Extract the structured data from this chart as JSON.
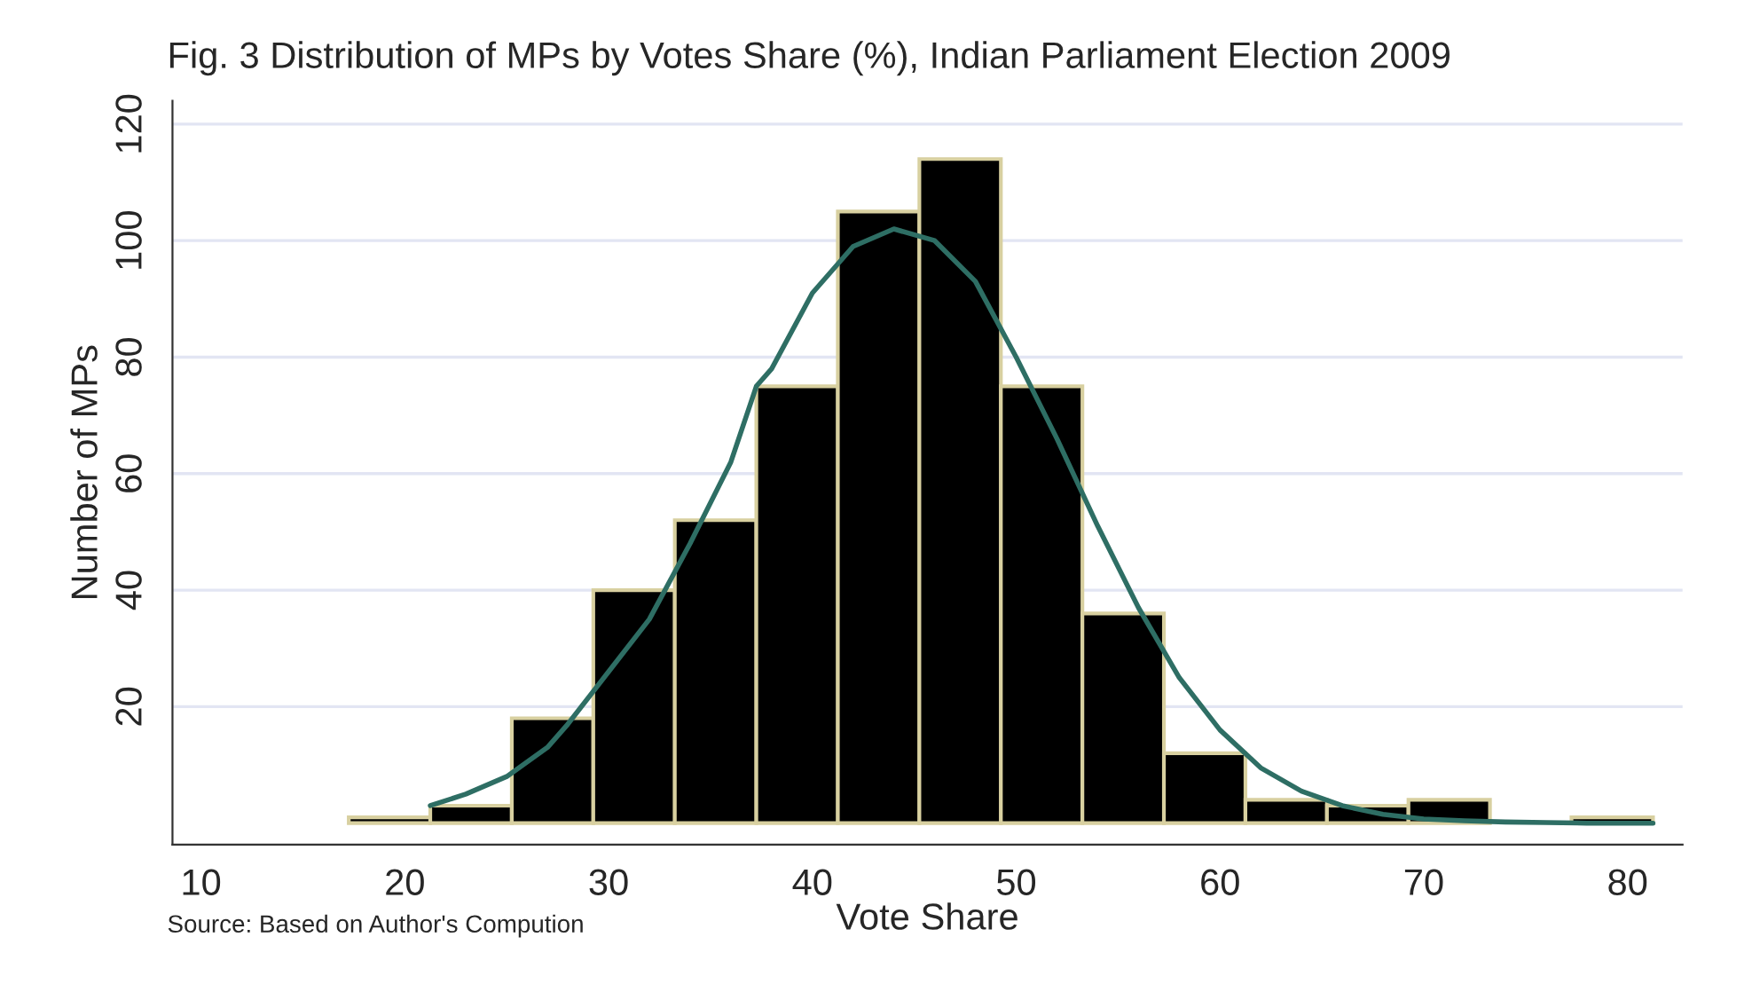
{
  "chart_data": {
    "type": "histogram",
    "title": "Fig. 3 Distribution of MPs by Votes Share (%), Indian Parliament Election 2009",
    "xlabel": "Vote Share",
    "ylabel": "Number of MPs",
    "bins": [
      17.25,
      21.25,
      25.25,
      29.25,
      33.25,
      37.25,
      41.25,
      45.25,
      49.25,
      53.25,
      57.25,
      61.25,
      65.25,
      69.25,
      73.25,
      77.25,
      81.25
    ],
    "values": [
      1,
      3,
      18,
      40,
      52,
      75,
      105,
      114,
      75,
      36,
      12,
      4,
      3,
      4,
      0,
      1
    ],
    "color": "#000000",
    "series": [
      {
        "type": "line",
        "color": "#2e6e64",
        "x": [
          21.25,
          23,
          25,
          27,
          28,
          30,
          32,
          34,
          36,
          37.25,
          38,
          40,
          42,
          44,
          46,
          48,
          50,
          52,
          54,
          56,
          58,
          60,
          62,
          64,
          66,
          68,
          70,
          72,
          74,
          76,
          78,
          81.25
        ],
        "values": [
          3,
          5,
          8,
          13,
          17,
          26,
          35,
          48,
          62,
          75,
          78,
          91,
          99,
          102,
          100,
          93,
          80,
          66,
          51,
          37,
          25,
          16,
          9.5,
          5.5,
          3,
          1.5,
          0.7,
          0.4,
          0.2,
          0.1,
          0,
          0
        ]
      }
    ],
    "xlim": [
      8.6,
      82.7
    ],
    "ylim": [
      -3.7,
      124
    ],
    "xticks": [
      10,
      20,
      30,
      40,
      50,
      60,
      70,
      80
    ],
    "yticks": [
      20,
      40,
      60,
      80,
      100,
      120
    ],
    "grid": "y",
    "annotations": [
      "Source: Based on Author's Compution"
    ]
  }
}
